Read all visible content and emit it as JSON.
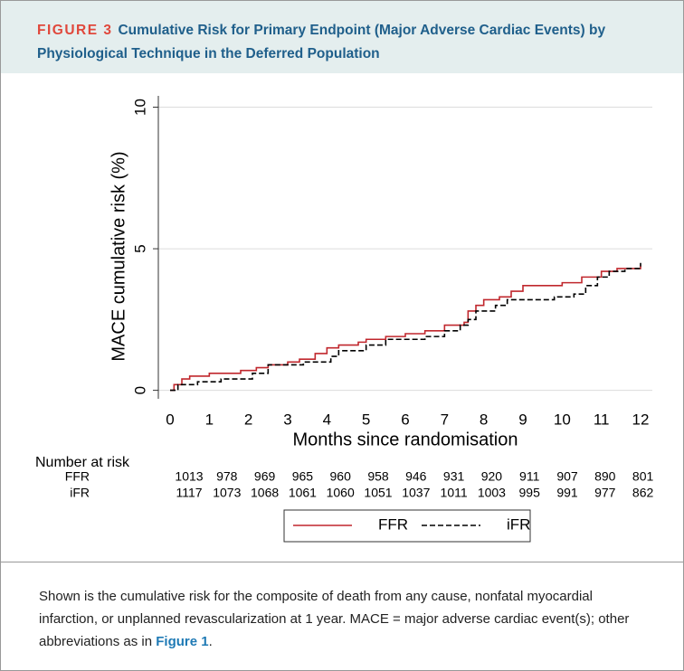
{
  "figure": {
    "label": "FIGURE 3",
    "title": "Cumulative Risk for Primary Endpoint (Major Adverse Cardiac Events) by Physiological Technique in the Deferred Population",
    "caption": [
      "Shown is the cumulative risk for the composite of death from any cause, nonfatal myocardial infarction, or unplanned revascularization at 1 year. MACE = major adverse cardiac event(s); other abbreviations as in ",
      "Figure 1",
      "."
    ]
  },
  "chart_data": {
    "type": "line",
    "line_shape": "step",
    "x_label": "Months since randomisation",
    "y_label": "MACE cumulative risk (%)",
    "xlim": [
      -0.3,
      12.3
    ],
    "xticks": [
      0,
      1,
      2,
      3,
      4,
      5,
      6,
      7,
      8,
      9,
      10,
      11,
      12
    ],
    "ylim": [
      -0.3,
      10.4
    ],
    "yticks": [
      0,
      5,
      10
    ],
    "grid": true,
    "series": [
      {
        "name": "FFR",
        "color": "#c0272d",
        "dash": "solid",
        "x": [
          0,
          0.1,
          0.3,
          0.5,
          1,
          1.8,
          2.2,
          2.5,
          3,
          3.3,
          3.7,
          4,
          4.3,
          4.8,
          5,
          5.5,
          6,
          6.5,
          7,
          7.5,
          7.6,
          7.8,
          8,
          8.4,
          8.7,
          9,
          10,
          10.5,
          11,
          11.4,
          12
        ],
        "values": [
          0,
          0.2,
          0.4,
          0.5,
          0.6,
          0.7,
          0.8,
          0.9,
          1.0,
          1.1,
          1.3,
          1.5,
          1.6,
          1.7,
          1.8,
          1.9,
          2.0,
          2.1,
          2.3,
          2.4,
          2.8,
          3.0,
          3.2,
          3.3,
          3.5,
          3.7,
          3.8,
          4.0,
          4.2,
          4.3,
          4.4
        ]
      },
      {
        "name": "iFR",
        "color": "#000000",
        "dash": "dashed",
        "x": [
          0,
          0.2,
          0.7,
          1.3,
          2.1,
          2.5,
          3.4,
          4.1,
          4.3,
          5,
          5.5,
          6.5,
          7,
          7.4,
          7.6,
          7.8,
          8.3,
          8.6,
          9.8,
          10.3,
          10.6,
          10.9,
          11.2,
          11.6,
          12
        ],
        "values": [
          0,
          0.2,
          0.3,
          0.4,
          0.6,
          0.9,
          1.0,
          1.2,
          1.4,
          1.6,
          1.8,
          1.9,
          2.1,
          2.3,
          2.5,
          2.8,
          3.0,
          3.2,
          3.3,
          3.4,
          3.7,
          4.0,
          4.2,
          4.3,
          4.5
        ]
      }
    ],
    "risk_table": {
      "title": "Number at risk",
      "rows": [
        {
          "name": "FFR",
          "values": [
            1013,
            978,
            969,
            965,
            960,
            958,
            946,
            931,
            920,
            911,
            907,
            890,
            801
          ]
        },
        {
          "name": "iFR",
          "values": [
            1117,
            1073,
            1068,
            1061,
            1060,
            1051,
            1037,
            1011,
            1003,
            995,
            991,
            977,
            862
          ]
        }
      ]
    }
  }
}
